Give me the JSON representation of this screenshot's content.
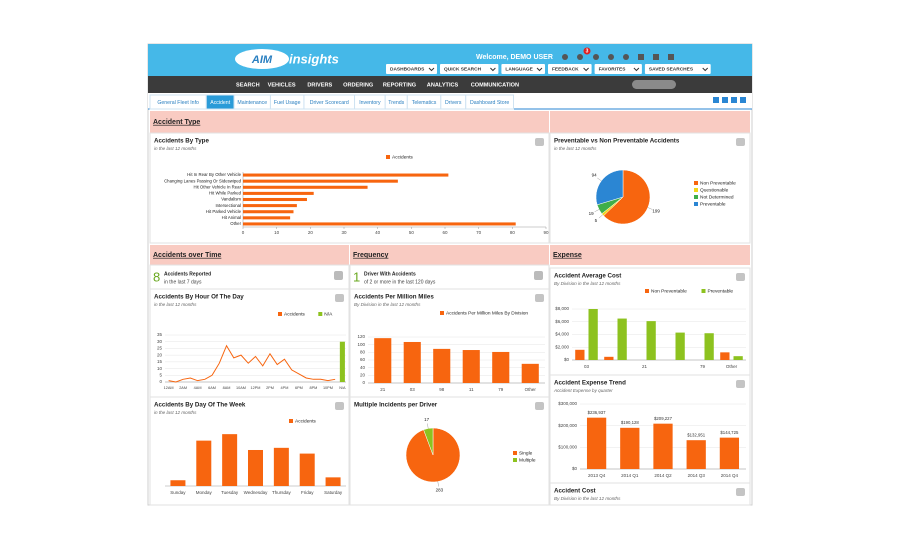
{
  "header": {
    "logo_mark": "AIM",
    "logo": "insights",
    "welcome": "Welcome, DEMO USER",
    "badge": "3",
    "menus": [
      "DASHBOARDS",
      "QUICK SEARCH",
      "LANGUAGE",
      "FEEDBACK",
      "FAVORITES",
      "SAVED SEARCHES"
    ]
  },
  "nav": [
    "SEARCH",
    "VEHICLES",
    "DRIVERS",
    "ORDERING",
    "REPORTING",
    "ANALYTICS",
    "COMMUNICATION"
  ],
  "tabs": {
    "items": [
      "General Fleet Info",
      "Accident",
      "Maintenance",
      "Fuel Usage",
      "Driver Scorecard",
      "Inventory",
      "Trends",
      "Telematics",
      "Drivers",
      "Dashboard Store"
    ],
    "active": 1
  },
  "sections": [
    "Accident Type",
    "Accidents over Time",
    "Frequency",
    "Expense"
  ],
  "kpis": [
    {
      "value": 8,
      "label": "Accidents Reported",
      "sub": "in the last 7 days"
    },
    {
      "value": 1,
      "label": "Driver With Accidents",
      "sub": "of 2 or more in the last 120 days"
    }
  ],
  "chart_data": [
    {
      "type": "hbar",
      "title": "Accidents By Type",
      "subtitle": "in the last 12 months",
      "categories": [
        "Hit In Rear By Other Vehicle",
        "Changing Lanes Passing Or Sideswiped",
        "Hit Other Vehicle In Rear",
        "Hit While Parked",
        "Vandalism",
        "Intersectional",
        "Hit Parked Vehicle",
        "Hit Animal",
        "Other"
      ],
      "series": [
        {
          "name": "Accidents",
          "color": "#f7650f",
          "values": [
            61,
            46,
            37,
            21,
            19,
            16,
            15,
            14,
            81
          ]
        }
      ],
      "xlim": [
        0,
        90
      ],
      "xticks": [
        0,
        10,
        20,
        30,
        40,
        50,
        60,
        70,
        80,
        90
      ]
    },
    {
      "type": "pie",
      "title": "Preventable vs Non Preventable Accidents",
      "subtitle": "in the last 12 months",
      "categories": [
        "Non Preventable",
        "Questionable",
        "Not Determined",
        "Preventable"
      ],
      "values": [
        199,
        5,
        19,
        94
      ],
      "colors": [
        "#f7650f",
        "#f2d518",
        "#3fae49",
        "#2b86d3"
      ]
    },
    {
      "type": "line",
      "title": "Accidents By Hour Of The Day",
      "subtitle": "in the last 12 months",
      "categories": [
        "12AM",
        null,
        "2AM",
        null,
        "4AM",
        null,
        "6AM",
        null,
        "8AM",
        null,
        "10AM",
        null,
        "12PM",
        null,
        "2PM",
        null,
        "4PM",
        null,
        "6PM",
        null,
        "8PM",
        null,
        "10PM",
        null,
        "N/A"
      ],
      "series": [
        {
          "name": "Accidents",
          "color": "#f7650f",
          "values": [
            1,
            0,
            2,
            3,
            1,
            2,
            5,
            14,
            27,
            18,
            20,
            14,
            19,
            12,
            21,
            13,
            17,
            9,
            6,
            3,
            2,
            2,
            1,
            2,
            null
          ]
        },
        {
          "name": "N/A",
          "color": "#8dc21f",
          "kind": "bar",
          "values": [
            null,
            null,
            null,
            null,
            null,
            null,
            null,
            null,
            null,
            null,
            null,
            null,
            null,
            null,
            null,
            null,
            null,
            null,
            null,
            null,
            null,
            null,
            null,
            null,
            30
          ]
        }
      ],
      "ylim": [
        0,
        35
      ],
      "yticks": [
        0,
        5,
        10,
        15,
        20,
        25,
        30,
        35
      ],
      "grid": true
    },
    {
      "type": "bar",
      "title": "Accidents By Day Of The Week",
      "subtitle": "in the last 12 months",
      "categories": [
        "Sunday",
        "Monday",
        "Tuesday",
        "Wednesday",
        "Thursday",
        "Friday",
        "Saturday"
      ],
      "series": [
        {
          "name": "Accidents",
          "color": "#f7650f",
          "values": [
            8,
            63,
            72,
            50,
            53,
            45,
            12
          ]
        }
      ]
    },
    {
      "type": "bar",
      "title": "Accidents Per Million Miles",
      "subtitle": "By Division in the last 12 months",
      "categories": [
        "21",
        "03",
        "98",
        "11",
        "79",
        "Other"
      ],
      "series": [
        {
          "name": "Accidents Per Million Miles By Division",
          "color": "#f7650f",
          "values": [
            117,
            107,
            89,
            86,
            81,
            50
          ]
        }
      ],
      "ylim": [
        0,
        120
      ],
      "yticks": [
        0,
        20,
        40,
        60,
        80,
        100,
        120
      ],
      "grid": true
    },
    {
      "type": "pie",
      "title": "Multiple Incidents per Driver",
      "categories": [
        "Single",
        "Multiple"
      ],
      "values": [
        283,
        17
      ],
      "colors": [
        "#f7650f",
        "#8dc21f"
      ]
    },
    {
      "type": "bar",
      "title": "Accident Average Cost",
      "subtitle": "By Division in the last 12 months",
      "categories": [
        "03",
        null,
        "21",
        null,
        "79",
        "Other"
      ],
      "series": [
        {
          "name": "Non Preventable",
          "color": "#f7650f",
          "values": [
            1600,
            500,
            null,
            null,
            null,
            1200
          ]
        },
        {
          "name": "Preventable",
          "color": "#8dc21f",
          "values": [
            8000,
            6500,
            6100,
            4300,
            4200,
            600
          ]
        }
      ],
      "ylim": [
        0,
        8000
      ],
      "yticks": [
        {
          "value": 0,
          "label": "$0"
        },
        {
          "value": 2000,
          "label": "$2,000"
        },
        {
          "value": 4000,
          "label": "$4,000"
        },
        {
          "value": 6000,
          "label": "$6,000"
        },
        {
          "value": 8000,
          "label": "$8,000"
        }
      ],
      "grid": true
    },
    {
      "type": "bar",
      "title": "Accident Expense Trend",
      "subtitle": "Accident Expense by quarter",
      "categories": [
        "2013 Q4",
        "2014 Q1",
        "2014 Q2",
        "2014 Q3",
        "2014 Q4"
      ],
      "series": [
        {
          "color": "#f7650f",
          "values": [
            236937,
            190128,
            209227,
            132951,
            144725
          ],
          "value_labels": [
            "$236,937",
            "$190,128",
            "$209,227",
            "$132,951",
            "$144,725"
          ]
        }
      ],
      "ylim": [
        0,
        300000
      ],
      "yticks": [
        {
          "value": 0,
          "label": "$0"
        },
        {
          "value": 100000,
          "label": "$100,000"
        },
        {
          "value": 200000,
          "label": "$200,000"
        },
        {
          "value": 300000,
          "label": "$300,000"
        }
      ],
      "grid": true
    },
    {
      "type": "bar",
      "title": "Accident Cost",
      "subtitle": "By Division in the last 12 months"
    }
  ]
}
